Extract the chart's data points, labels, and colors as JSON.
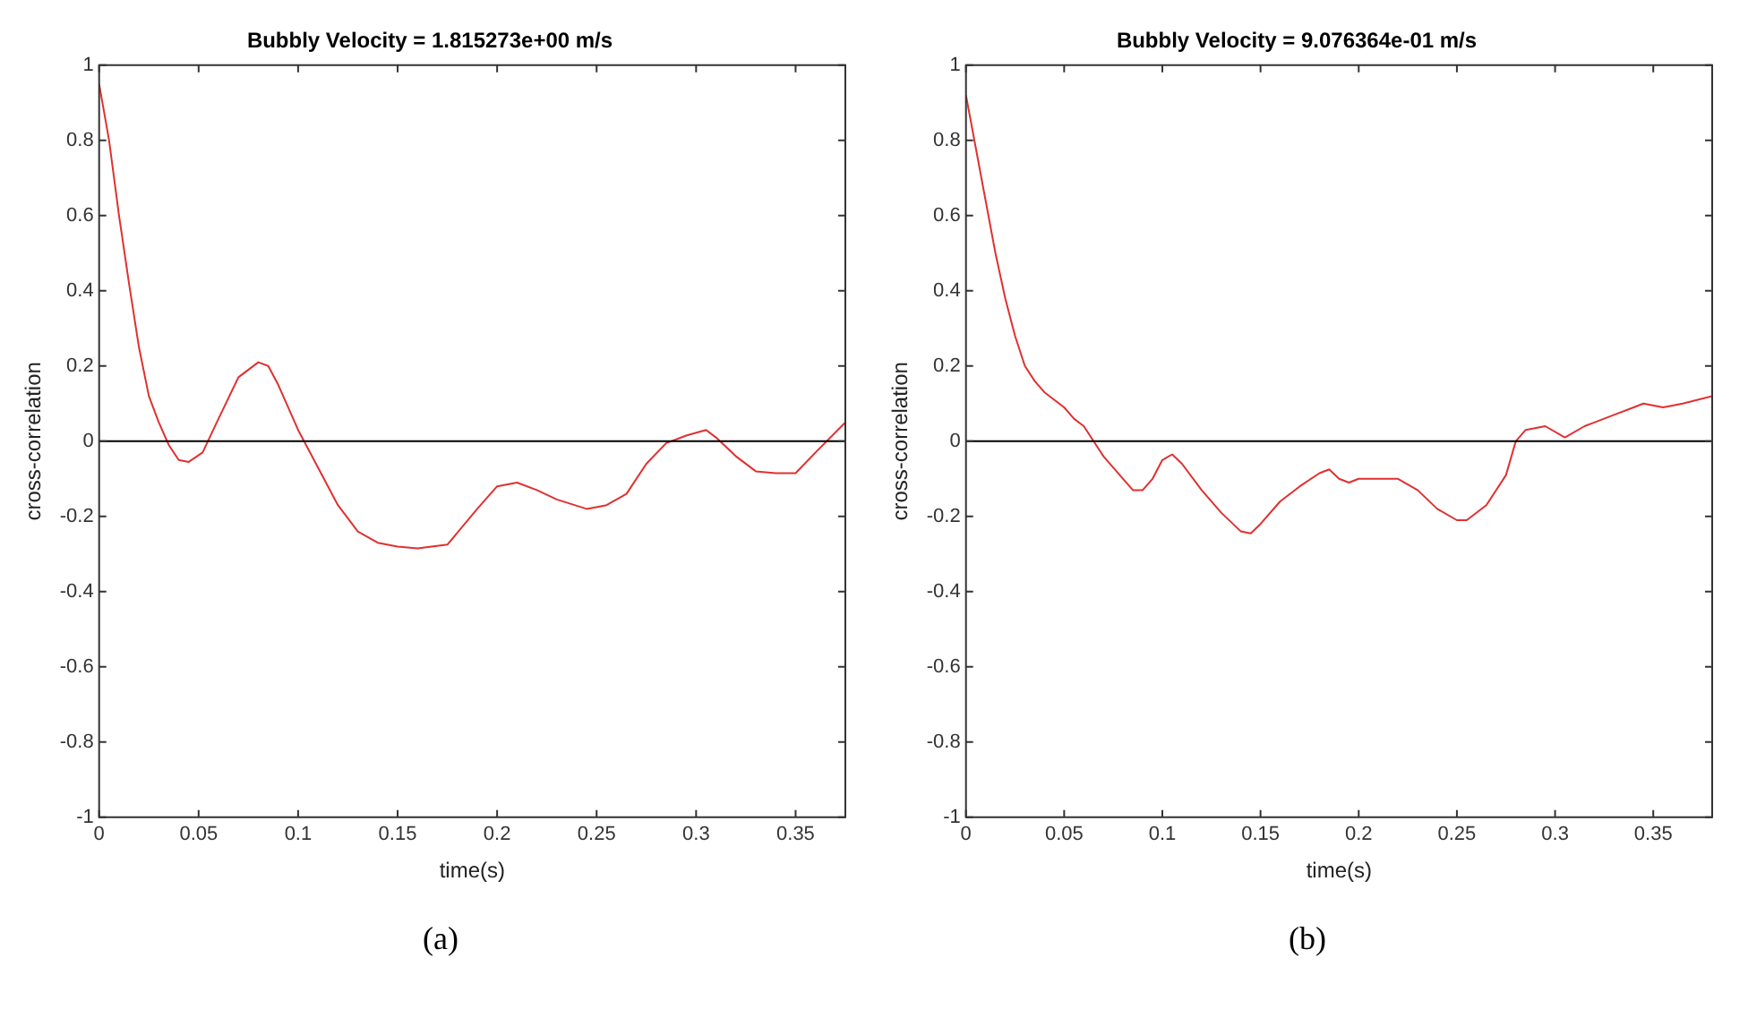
{
  "chart_data": [
    {
      "type": "line",
      "title": "Bubbly Velocity = 1.815273e+00 m/s",
      "xlabel": "time(s)",
      "ylabel": "cross-correlation",
      "annotations": [
        "(a)"
      ],
      "xlim": [
        0,
        0.375
      ],
      "xticks": [
        0,
        0.05,
        0.1,
        0.15,
        0.2,
        0.25,
        0.3,
        0.35
      ],
      "ylim": [
        -1,
        1
      ],
      "yticks": [
        -1,
        -0.8,
        -0.6,
        -0.4,
        -0.2,
        0,
        0.2,
        0.4,
        0.6,
        0.8,
        1
      ],
      "grid": false,
      "legend": false,
      "marker": "none",
      "line_style": "solid",
      "ref_lines": [
        {
          "axis": "y",
          "value": 0,
          "color": "#000000"
        }
      ],
      "series": [
        {
          "color": "#e03030",
          "x": [
            0,
            0.005,
            0.01,
            0.015,
            0.02,
            0.025,
            0.03,
            0.035,
            0.04,
            0.045,
            0.052,
            0.06,
            0.07,
            0.08,
            0.085,
            0.09,
            0.1,
            0.105,
            0.11,
            0.12,
            0.13,
            0.14,
            0.15,
            0.16,
            0.175,
            0.19,
            0.2,
            0.21,
            0.22,
            0.23,
            0.245,
            0.255,
            0.265,
            0.275,
            0.285,
            0.295,
            0.305,
            0.31,
            0.32,
            0.33,
            0.34,
            0.35,
            0.36,
            0.375
          ],
          "values": [
            0.95,
            0.8,
            0.6,
            0.42,
            0.25,
            0.12,
            0.05,
            -0.01,
            -0.05,
            -0.055,
            -0.03,
            0.06,
            0.17,
            0.21,
            0.2,
            0.15,
            0.03,
            -0.02,
            -0.07,
            -0.17,
            -0.24,
            -0.27,
            -0.28,
            -0.285,
            -0.275,
            -0.18,
            -0.12,
            -0.11,
            -0.13,
            -0.155,
            -0.18,
            -0.17,
            -0.14,
            -0.06,
            -0.005,
            0.015,
            0.03,
            0.01,
            -0.04,
            -0.08,
            -0.085,
            -0.085,
            -0.03,
            0.05
          ]
        }
      ]
    },
    {
      "type": "line",
      "title": "Bubbly Velocity = 9.076364e-01 m/s",
      "xlabel": "time(s)",
      "ylabel": "cross-correlation",
      "annotations": [
        "(b)"
      ],
      "xlim": [
        0,
        0.38
      ],
      "xticks": [
        0,
        0.05,
        0.1,
        0.15,
        0.2,
        0.25,
        0.3,
        0.35
      ],
      "ylim": [
        -1,
        1
      ],
      "yticks": [
        -1,
        -0.8,
        -0.6,
        -0.4,
        -0.2,
        0,
        0.2,
        0.4,
        0.6,
        0.8,
        1
      ],
      "grid": false,
      "legend": false,
      "marker": "none",
      "line_style": "solid",
      "ref_lines": [
        {
          "axis": "y",
          "value": 0,
          "color": "#000000"
        }
      ],
      "series": [
        {
          "color": "#e03030",
          "x": [
            0,
            0.005,
            0.01,
            0.015,
            0.02,
            0.025,
            0.03,
            0.035,
            0.04,
            0.05,
            0.055,
            0.06,
            0.065,
            0.07,
            0.08,
            0.085,
            0.09,
            0.095,
            0.1,
            0.105,
            0.11,
            0.12,
            0.13,
            0.14,
            0.145,
            0.15,
            0.16,
            0.17,
            0.18,
            0.185,
            0.19,
            0.195,
            0.2,
            0.21,
            0.22,
            0.23,
            0.24,
            0.25,
            0.255,
            0.265,
            0.275,
            0.28,
            0.285,
            0.295,
            0.305,
            0.315,
            0.33,
            0.34,
            0.345,
            0.355,
            0.365,
            0.38
          ],
          "values": [
            0.92,
            0.78,
            0.64,
            0.5,
            0.38,
            0.28,
            0.2,
            0.16,
            0.13,
            0.09,
            0.06,
            0.04,
            0.0,
            -0.04,
            -0.1,
            -0.13,
            -0.13,
            -0.1,
            -0.05,
            -0.035,
            -0.06,
            -0.13,
            -0.19,
            -0.24,
            -0.245,
            -0.22,
            -0.16,
            -0.12,
            -0.085,
            -0.075,
            -0.1,
            -0.11,
            -0.1,
            -0.1,
            -0.1,
            -0.13,
            -0.18,
            -0.21,
            -0.21,
            -0.17,
            -0.09,
            0.0,
            0.03,
            0.04,
            0.01,
            0.04,
            0.07,
            0.09,
            0.1,
            0.09,
            0.1,
            0.12
          ]
        }
      ]
    }
  ]
}
